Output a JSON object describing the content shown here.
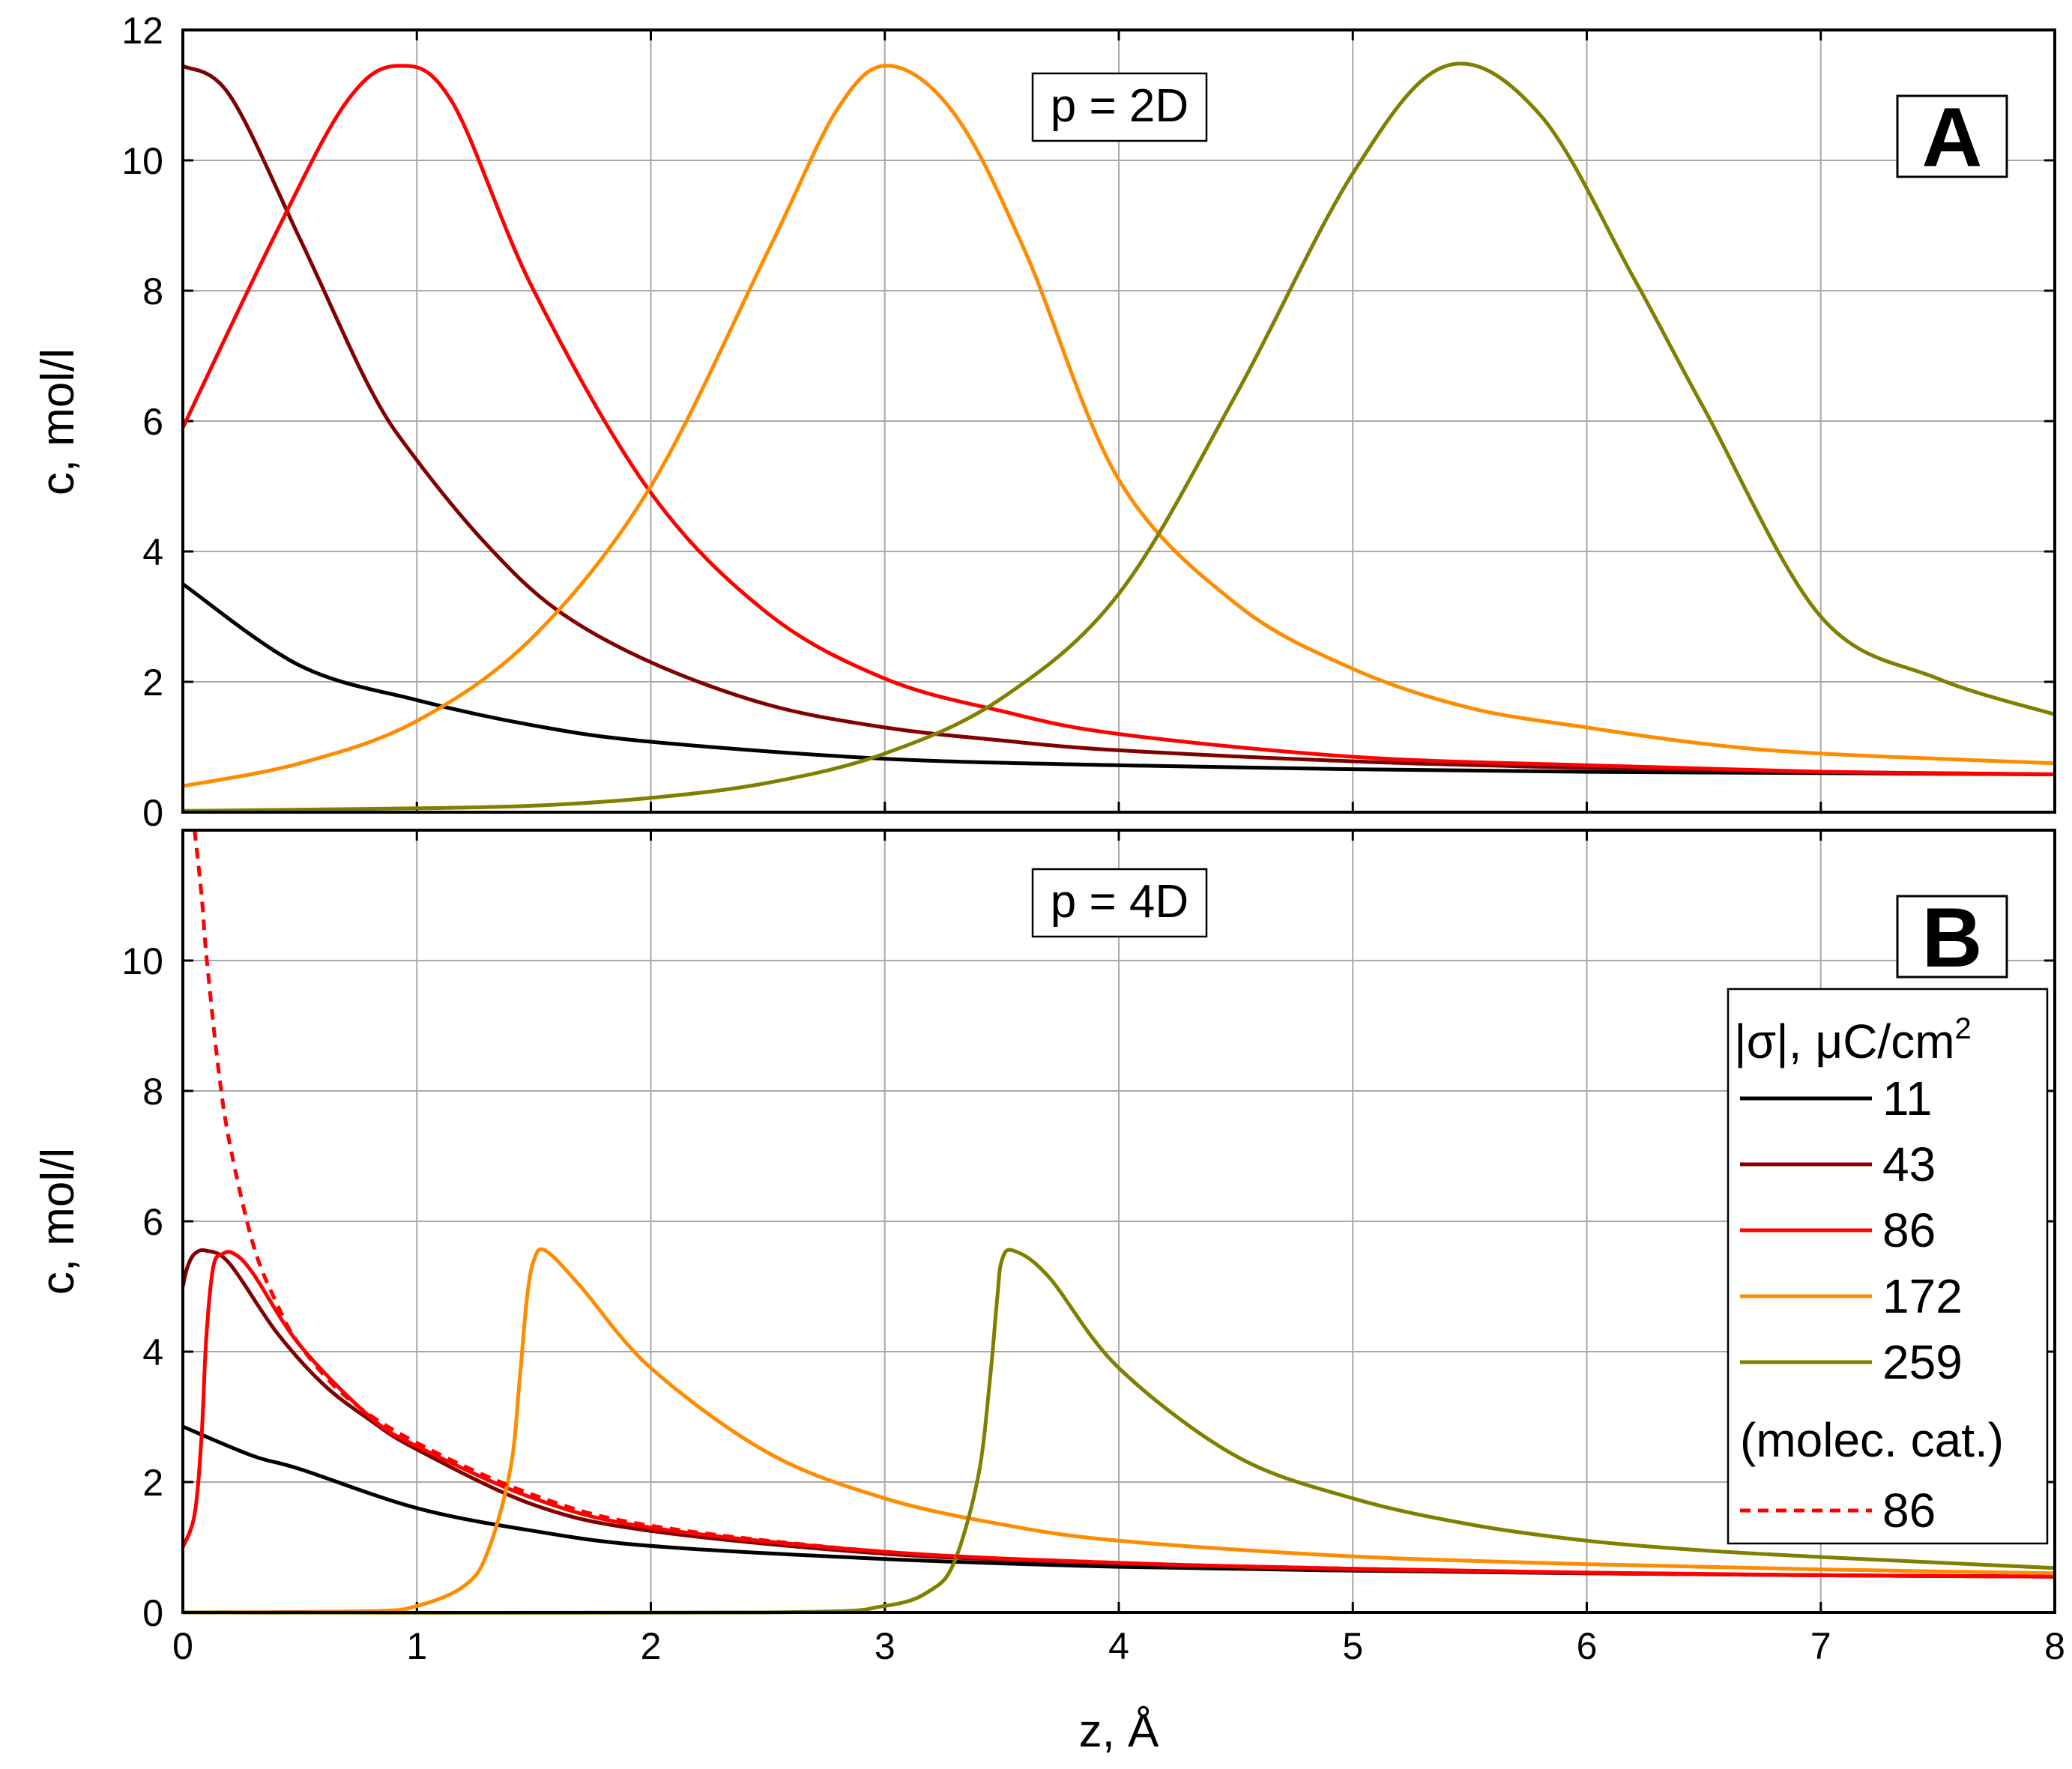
{
  "figure": {
    "xlabel": "z, Å",
    "x_ticks": [
      "0",
      "1",
      "2",
      "3",
      "4",
      "5",
      "6",
      "7",
      "8"
    ]
  },
  "chart_data": [
    {
      "type": "line",
      "panel": "A",
      "annotation": "p = 2D",
      "xlabel": "z, Å",
      "ylabel": "c, mol/l",
      "xlim": [
        0,
        8
      ],
      "ylim": [
        0,
        12
      ],
      "x_ticks": [
        0,
        1,
        2,
        3,
        4,
        5,
        6,
        7,
        8
      ],
      "y_ticks": [
        0,
        2,
        4,
        6,
        8,
        10,
        12
      ],
      "grid": true,
      "series": [
        {
          "key": "s11",
          "color": "#000000",
          "dash": false,
          "x": [
            0,
            0.5,
            1,
            1.5,
            2,
            3,
            4,
            5,
            6,
            7,
            8
          ],
          "y": [
            3.5,
            2.25,
            1.72,
            1.33,
            1.08,
            0.82,
            0.72,
            0.66,
            0.62,
            0.6,
            0.58
          ]
        },
        {
          "key": "s43",
          "color": "#800000",
          "dash": false,
          "x": [
            0,
            0.2,
            0.5,
            0.8,
            1,
            1.3,
            1.6,
            2,
            2.5,
            3,
            3.5,
            4,
            5,
            6,
            7,
            8
          ],
          "y": [
            11.45,
            11.0,
            8.8,
            6.5,
            5.4,
            4.1,
            3.1,
            2.3,
            1.65,
            1.3,
            1.1,
            0.95,
            0.78,
            0.68,
            0.62,
            0.58
          ]
        },
        {
          "key": "s86",
          "color": "#ff0000",
          "dash": false,
          "x": [
            0,
            0.4,
            0.7,
            0.92,
            1.15,
            1.5,
            2,
            2.5,
            3,
            3.5,
            4,
            5,
            6,
            7,
            8
          ],
          "y": [
            5.9,
            8.9,
            10.9,
            11.45,
            10.9,
            8.0,
            4.9,
            3.05,
            2.05,
            1.55,
            1.2,
            0.85,
            0.72,
            0.62,
            0.58
          ]
        },
        {
          "key": "s172",
          "color": "#ff8c00",
          "dash": false,
          "x": [
            0,
            0.5,
            1,
            1.5,
            2,
            2.5,
            2.8,
            3.02,
            3.3,
            3.6,
            4,
            4.5,
            5,
            5.5,
            6,
            6.5,
            7,
            8
          ],
          "y": [
            0.4,
            0.75,
            1.4,
            2.7,
            5.0,
            8.6,
            10.8,
            11.45,
            10.7,
            8.6,
            5.1,
            3.2,
            2.2,
            1.6,
            1.3,
            1.05,
            0.9,
            0.75
          ]
        },
        {
          "key": "s259",
          "color": "#808000",
          "dash": false,
          "x": [
            0,
            1,
            1.5,
            2,
            2.5,
            3,
            3.5,
            4,
            4.5,
            5,
            5.4,
            5.8,
            6.2,
            6.5,
            7,
            7.5,
            8
          ],
          "y": [
            0.02,
            0.06,
            0.1,
            0.22,
            0.45,
            0.9,
            1.75,
            3.35,
            6.4,
            9.8,
            11.45,
            10.7,
            8.2,
            6.2,
            3.0,
            2.05,
            1.5
          ]
        }
      ]
    },
    {
      "type": "line",
      "panel": "B",
      "annotation": "p = 4D",
      "xlabel": "z, Å",
      "ylabel": "c, mol/l",
      "xlim": [
        0,
        8
      ],
      "ylim": [
        0,
        12
      ],
      "x_ticks": [
        0,
        1,
        2,
        3,
        4,
        5,
        6,
        7,
        8
      ],
      "y_ticks": [
        0,
        2,
        4,
        6,
        8,
        10
      ],
      "grid": true,
      "legend": {
        "title": "|σ|, μC/cm",
        "title_sup": "2",
        "subheading": "(molec. cat.)",
        "location": "right"
      },
      "series": [
        {
          "key": "s11",
          "name": "11",
          "color": "#000000",
          "dash": false,
          "x": [
            0,
            0.3,
            0.5,
            1,
            1.5,
            2,
            3,
            4,
            5,
            6,
            7,
            8
          ],
          "y": [
            2.85,
            2.4,
            2.2,
            1.6,
            1.25,
            1.02,
            0.82,
            0.7,
            0.64,
            0.6,
            0.57,
            0.55
          ]
        },
        {
          "key": "s43",
          "name": "43",
          "color": "#800000",
          "dash": false,
          "x": [
            0,
            0.02,
            0.05,
            0.1,
            0.2,
            0.4,
            0.6,
            0.8,
            1,
            1.5,
            2,
            3,
            4,
            5,
            6,
            7,
            8
          ],
          "y": [
            5.0,
            5.3,
            5.5,
            5.55,
            5.35,
            4.3,
            3.5,
            2.95,
            2.5,
            1.65,
            1.25,
            0.9,
            0.75,
            0.65,
            0.6,
            0.57,
            0.55
          ]
        },
        {
          "key": "s86",
          "name": "86",
          "color": "#ff0000",
          "dash": false,
          "x": [
            0,
            0.05,
            0.08,
            0.1,
            0.13,
            0.17,
            0.22,
            0.3,
            0.5,
            0.8,
            1,
            1.5,
            2,
            3,
            4,
            5,
            6,
            7,
            8
          ],
          "y": [
            1.0,
            1.5,
            2.7,
            4.2,
            5.3,
            5.5,
            5.5,
            5.2,
            4.1,
            3.0,
            2.55,
            1.75,
            1.3,
            0.93,
            0.76,
            0.67,
            0.61,
            0.57,
            0.55
          ]
        },
        {
          "key": "s172",
          "name": "172",
          "color": "#ff8c00",
          "dash": false,
          "x": [
            0,
            0.8,
            1,
            1.2,
            1.3,
            1.4,
            1.44,
            1.47,
            1.5,
            1.55,
            1.7,
            2,
            2.5,
            3,
            3.5,
            4,
            5,
            6,
            7,
            8
          ],
          "y": [
            0,
            0.02,
            0.1,
            0.4,
            0.9,
            2.2,
            3.6,
            4.8,
            5.4,
            5.55,
            5.0,
            3.75,
            2.45,
            1.75,
            1.35,
            1.1,
            0.86,
            0.74,
            0.66,
            0.6
          ]
        },
        {
          "key": "s259",
          "name": "259",
          "color": "#808000",
          "dash": false,
          "x": [
            0,
            2.5,
            3,
            3.2,
            3.3,
            3.4,
            3.45,
            3.48,
            3.5,
            3.55,
            3.7,
            4,
            4.5,
            5,
            5.5,
            6,
            6.5,
            7,
            8
          ],
          "y": [
            0,
            0,
            0.1,
            0.35,
            0.8,
            2.1,
            3.6,
            4.8,
            5.4,
            5.55,
            5.15,
            3.75,
            2.4,
            1.75,
            1.35,
            1.1,
            0.95,
            0.85,
            0.68
          ]
        },
        {
          "key": "mc86",
          "name": "86",
          "color": "#ff0000",
          "dash": true,
          "x": [
            0.05,
            0.08,
            0.1,
            0.15,
            0.2,
            0.3,
            0.4,
            0.5,
            0.7,
            1,
            1.5,
            2,
            3,
            4,
            5,
            6,
            7,
            8
          ],
          "y": [
            12,
            11.0,
            10.1,
            8.4,
            7.2,
            5.65,
            4.75,
            4.1,
            3.3,
            2.6,
            1.8,
            1.33,
            0.93,
            0.76,
            0.67,
            0.61,
            0.57,
            0.55
          ]
        }
      ]
    }
  ]
}
